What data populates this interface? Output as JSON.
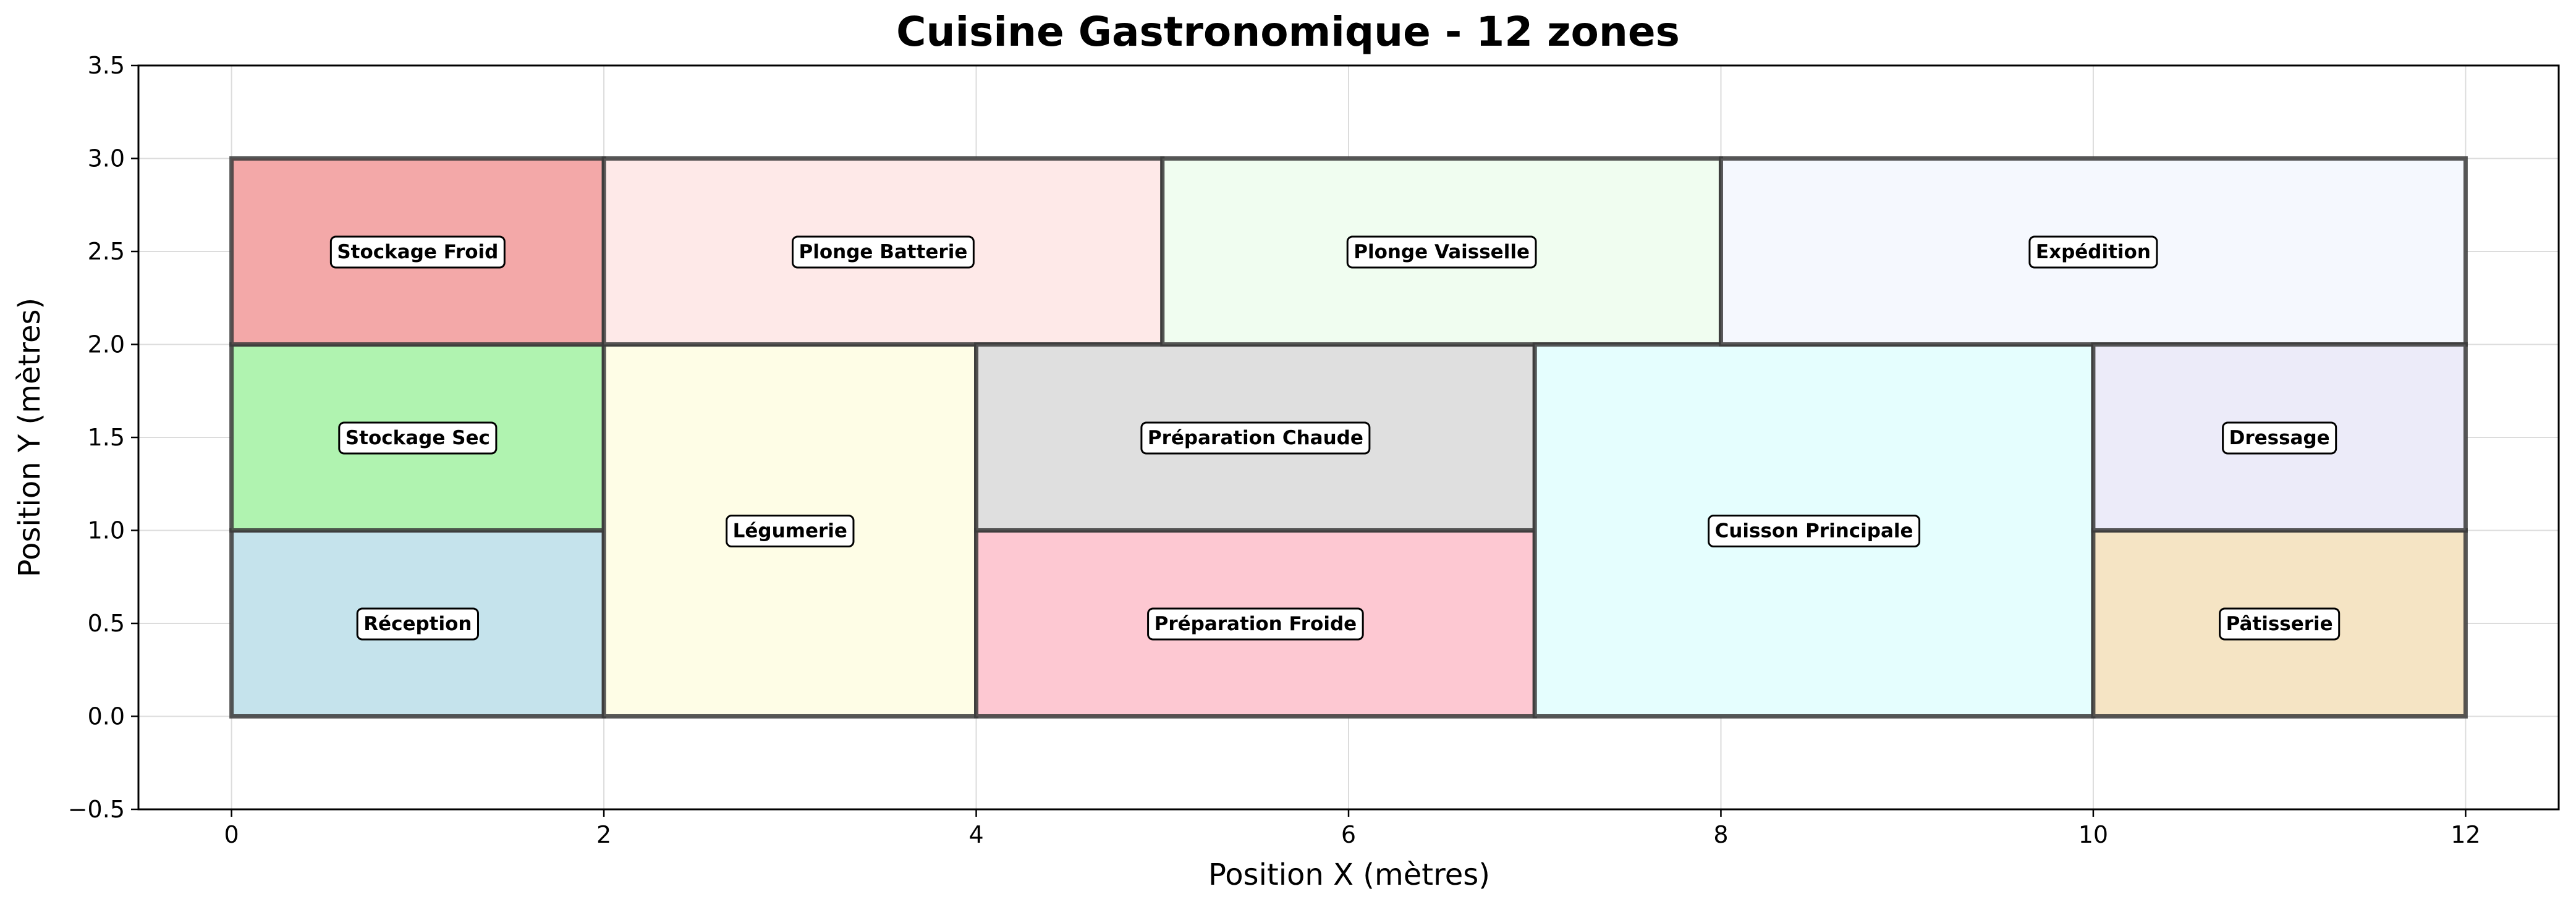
{
  "chart_data": {
    "type": "floor-plan",
    "title": "Cuisine Gastronomique - 12 zones",
    "xlabel": "Position X (mètres)",
    "ylabel": "Position Y (mètres)",
    "xlim": [
      -0.5,
      12.5
    ],
    "ylim": [
      -0.5,
      3.5
    ],
    "xticks": [
      0,
      2,
      4,
      6,
      8,
      10,
      12
    ],
    "yticks": [
      -0.5,
      0.0,
      0.5,
      1.0,
      1.5,
      2.0,
      2.5,
      3.0,
      3.5
    ],
    "xtick_labels": [
      "0",
      "2",
      "4",
      "6",
      "8",
      "10",
      "12"
    ],
    "ytick_labels": [
      "−0.5",
      "0.0",
      "0.5",
      "1.0",
      "1.5",
      "2.0",
      "2.5",
      "3.0",
      "3.5"
    ],
    "grid": true,
    "zones": [
      {
        "name": "Réception",
        "x": 0,
        "y": 0,
        "w": 2,
        "h": 1,
        "color": "#c5e3ec"
      },
      {
        "name": "Stockage Sec",
        "x": 0,
        "y": 1,
        "w": 2,
        "h": 1,
        "color": "#b0f3b0"
      },
      {
        "name": "Stockage Froid",
        "x": 0,
        "y": 2,
        "w": 2,
        "h": 1,
        "color": "#f3a8a8"
      },
      {
        "name": "Légumerie",
        "x": 2,
        "y": 0,
        "w": 2,
        "h": 2,
        "color": "#fefde6"
      },
      {
        "name": "Plonge Batterie",
        "x": 2,
        "y": 2,
        "w": 3,
        "h": 1,
        "color": "#fee9e8"
      },
      {
        "name": "Préparation Froide",
        "x": 4,
        "y": 0,
        "w": 3,
        "h": 1,
        "color": "#fdc8d2"
      },
      {
        "name": "Préparation Chaude",
        "x": 4,
        "y": 1,
        "w": 3,
        "h": 1,
        "color": "#dfdfdf"
      },
      {
        "name": "Plonge Vaisselle",
        "x": 5,
        "y": 2,
        "w": 3,
        "h": 1,
        "color": "#f0fdf0"
      },
      {
        "name": "Cuisson Principale",
        "x": 7,
        "y": 0,
        "w": 3,
        "h": 2,
        "color": "#e5fefe"
      },
      {
        "name": "Expédition",
        "x": 8,
        "y": 2,
        "w": 4,
        "h": 1,
        "color": "#f5f8fe"
      },
      {
        "name": "Pâtisserie",
        "x": 10,
        "y": 0,
        "w": 2,
        "h": 1,
        "color": "#f5e4c4"
      },
      {
        "name": "Dressage",
        "x": 10,
        "y": 1,
        "w": 2,
        "h": 1,
        "color": "#ecebf9"
      }
    ]
  }
}
